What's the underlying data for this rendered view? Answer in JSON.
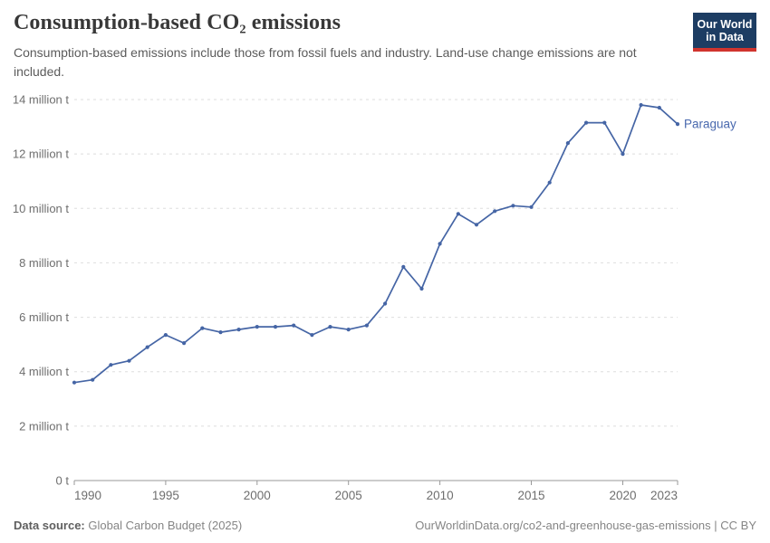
{
  "header": {
    "title": "Consumption-based CO₂ emissions",
    "subtitle": "Consumption-based emissions include those from fossil fuels and industry. Land-use change emissions are not included.",
    "logo": {
      "line1": "Our World",
      "line2": "in Data",
      "bg_color": "#1d3d63",
      "stripe_color": "#d0342e"
    }
  },
  "footer": {
    "source_label": "Data source:",
    "source_value": "Global Carbon Budget (2025)",
    "link": "OurWorldinData.org/co2-and-greenhouse-gas-emissions | CC BY"
  },
  "chart_data": {
    "type": "line",
    "title": "Consumption-based CO₂ emissions",
    "entity": "Paraguay",
    "unit": "million t",
    "ylabel": "",
    "xlabel": "",
    "xlim": [
      1990,
      2023
    ],
    "ylim": [
      0,
      14
    ],
    "grid": "horizontal-dashed",
    "legend_position": "end-of-line-label",
    "line_color": "#4565a5",
    "label_color": "#4868ae",
    "x": [
      1990,
      1991,
      1992,
      1993,
      1994,
      1995,
      1996,
      1997,
      1998,
      1999,
      2000,
      2001,
      2002,
      2003,
      2004,
      2005,
      2006,
      2007,
      2008,
      2009,
      2010,
      2011,
      2012,
      2013,
      2014,
      2015,
      2016,
      2017,
      2018,
      2019,
      2020,
      2021,
      2022,
      2023
    ],
    "values": [
      3.6,
      3.7,
      4.25,
      4.4,
      4.9,
      5.35,
      5.05,
      5.6,
      5.45,
      5.55,
      5.65,
      5.65,
      5.7,
      5.35,
      5.65,
      5.55,
      5.7,
      6.5,
      7.85,
      7.05,
      8.7,
      9.8,
      9.4,
      9.9,
      10.1,
      10.05,
      10.95,
      12.4,
      13.15,
      13.15,
      12.0,
      13.8,
      13.7,
      13.1
    ],
    "y_ticks": [
      {
        "v": 0,
        "label": "0 t"
      },
      {
        "v": 2,
        "label": "2 million t"
      },
      {
        "v": 4,
        "label": "4 million t"
      },
      {
        "v": 6,
        "label": "6 million t"
      },
      {
        "v": 8,
        "label": "8 million t"
      },
      {
        "v": 10,
        "label": "10 million t"
      },
      {
        "v": 12,
        "label": "12 million t"
      },
      {
        "v": 14,
        "label": "14 million t"
      }
    ],
    "x_ticks": [
      1990,
      1995,
      2000,
      2005,
      2010,
      2015,
      2020,
      2023
    ]
  }
}
